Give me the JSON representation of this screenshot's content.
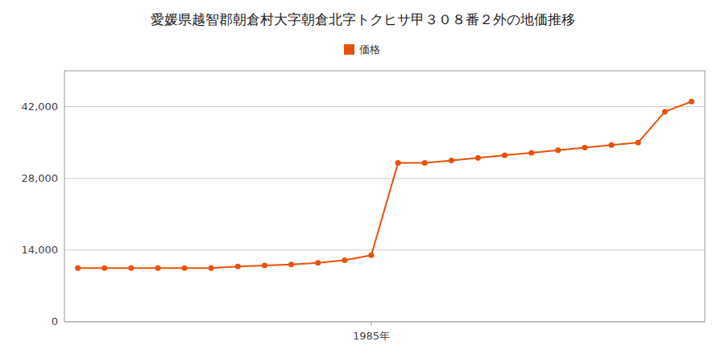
{
  "chart_data": {
    "type": "line",
    "title": "愛媛県越智郡朝倉村大字朝倉北字トクヒサ甲３０８番２外の地価推移",
    "x": [
      1974,
      1975,
      1976,
      1977,
      1978,
      1979,
      1980,
      1981,
      1982,
      1983,
      1984,
      1985,
      1986,
      1987,
      1988,
      1989,
      1990,
      1991,
      1992,
      1993,
      1994,
      1995,
      1996,
      1997
    ],
    "series": [
      {
        "name": "価格",
        "color": "#e8520a",
        "marker": "circle",
        "values": [
          10500,
          10500,
          10500,
          10500,
          10500,
          10500,
          10800,
          11000,
          11200,
          11500,
          12000,
          13000,
          31000,
          31000,
          31500,
          32000,
          32500,
          33000,
          33500,
          34000,
          34500,
          35000,
          41000,
          43000
        ]
      }
    ],
    "xlim": [
      1973.5,
      1997.5
    ],
    "xticks": [
      {
        "value": 1985,
        "label": "1985年"
      }
    ],
    "ylim": [
      0,
      49000
    ],
    "yticks": [
      0,
      {
        "value": 14000,
        "label": "14,000"
      },
      {
        "value": 28000,
        "label": "28,000"
      },
      {
        "value": 42000,
        "label": "42,000"
      }
    ],
    "grid": true,
    "legend": "top"
  }
}
